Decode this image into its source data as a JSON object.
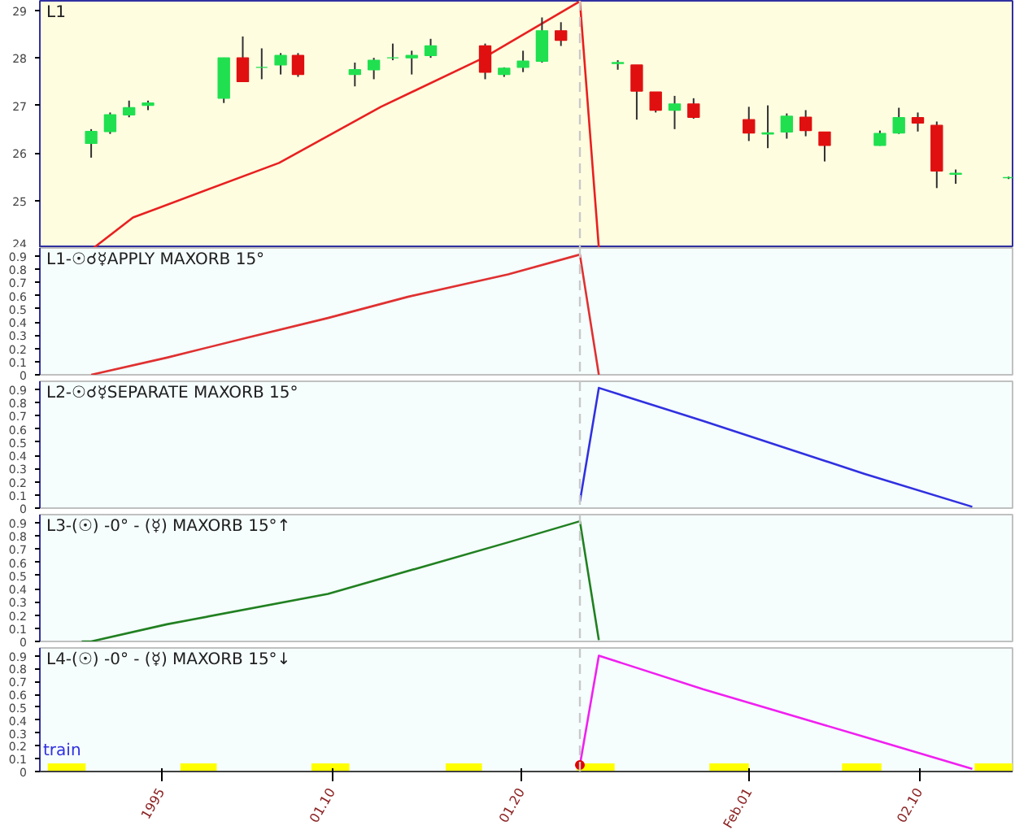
{
  "chart_data": [
    {
      "type": "candlestick",
      "title": "L1",
      "x": [
        "1994-12-28T07:00",
        "1994-12-29T07:00",
        "1994-12-30T07:00",
        "1994-12-31T07:00",
        "1995-01-04T07:00",
        "1995-01-05T07:00",
        "1995-01-06T07:00",
        "1995-01-07T07:00",
        "1995-01-08T05:00",
        "1995-01-11T05:00",
        "1995-01-12T05:00",
        "1995-01-13T05:00",
        "1995-01-14T05:00",
        "1995-01-15T05:00",
        "1995-01-18T02:00",
        "1995-01-19T02:00",
        "1995-01-20T02:00",
        "1995-01-21T02:00",
        "1995-01-22T02:00",
        "1995-01-25T02:00",
        "1995-01-26T02:00",
        "1995-01-27T02:00",
        "1995-01-28T02:00",
        "1995-01-29T02:00",
        "1995-02-01T00:00",
        "1995-02-02T00:00",
        "1995-02-03T00:00",
        "1995-02-04T00:00",
        "1995-02-05T00:00",
        "1995-02-07T22:00",
        "1995-02-08T22:00",
        "1995-02-09T22:00",
        "1995-02-10T22:00",
        "1995-02-11T22:00",
        "1995-02-14T17:00"
      ],
      "ohlc": [
        [
          26.2,
          26.5,
          25.9,
          26.45
        ],
        [
          26.45,
          26.85,
          26.4,
          26.8
        ],
        [
          26.8,
          27.1,
          26.75,
          26.95
        ],
        [
          27.0,
          27.1,
          26.9,
          27.05
        ],
        [
          27.15,
          28.0,
          27.05,
          28.0
        ],
        [
          28.0,
          28.45,
          27.5,
          27.5
        ],
        [
          27.8,
          28.2,
          27.55,
          27.8
        ],
        [
          27.85,
          28.1,
          27.65,
          28.05
        ],
        [
          28.05,
          28.1,
          27.6,
          27.65
        ],
        [
          27.65,
          27.9,
          27.4,
          27.75
        ],
        [
          27.75,
          28.0,
          27.55,
          27.95
        ],
        [
          28.0,
          28.3,
          27.95,
          28.0
        ],
        [
          28.0,
          28.15,
          27.65,
          28.05
        ],
        [
          28.05,
          28.4,
          28.0,
          28.25
        ],
        [
          28.25,
          28.3,
          27.55,
          27.7
        ],
        [
          27.65,
          27.8,
          27.6,
          27.78
        ],
        [
          27.8,
          28.15,
          27.7,
          27.93
        ],
        [
          27.93,
          28.85,
          27.9,
          28.57
        ],
        [
          28.57,
          28.75,
          28.25,
          28.37
        ],
        [
          27.88,
          27.95,
          27.75,
          27.9
        ],
        [
          27.85,
          27.85,
          26.7,
          27.3
        ],
        [
          27.28,
          27.28,
          26.85,
          26.9
        ],
        [
          26.9,
          27.2,
          26.5,
          27.03
        ],
        [
          27.03,
          27.15,
          26.72,
          26.75
        ],
        [
          26.7,
          26.97,
          26.25,
          26.42
        ],
        [
          26.4,
          27.0,
          26.1,
          26.42
        ],
        [
          26.44,
          26.83,
          26.3,
          26.77
        ],
        [
          26.75,
          26.9,
          26.35,
          26.47
        ],
        [
          26.44,
          26.44,
          25.82,
          26.16
        ],
        [
          26.16,
          26.47,
          26.15,
          26.41
        ],
        [
          26.42,
          26.95,
          26.4,
          26.74
        ],
        [
          26.74,
          26.85,
          26.45,
          26.63
        ],
        [
          26.58,
          26.66,
          25.26,
          25.62
        ],
        [
          25.55,
          25.65,
          25.35,
          25.57
        ],
        [
          25.48,
          25.5,
          25.45,
          25.48
        ]
      ],
      "colors": [
        "#20e050",
        "#20e050",
        "#20e050",
        "#20e050",
        "#20e050",
        "#e01010",
        "#20e050",
        "#20e050",
        "#e01010",
        "#20e050",
        "#20e050",
        "#20e050",
        "#20e050",
        "#20e050",
        "#e01010",
        "#20e050",
        "#20e050",
        "#20e050",
        "#e01010",
        "#20e050",
        "#e01010",
        "#e01010",
        "#20e050",
        "#e01010",
        "#e01010",
        "#20e050",
        "#20e050",
        "#e01010",
        "#e01010",
        "#20e050",
        "#20e050",
        "#e01010",
        "#e01010",
        "#20e050",
        "#20e050"
      ],
      "series": [
        {
          "type": "line",
          "x": [
            "1994-12-28T10:00",
            "1994-12-30T12:00",
            "1995-01-07T05:00",
            "1995-01-12T14:00",
            "1995-01-18T00:00",
            "1995-01-23T02:00",
            "1995-01-24T02:00"
          ],
          "values": [
            24.0,
            24.64,
            25.79,
            26.97,
            28.0,
            29.19,
            24.0
          ],
          "color": "#e82020"
        }
      ],
      "xlim": [
        "1994-12-25T14:00",
        "1995-02-14T22:00"
      ],
      "ylim": [
        24,
        29.2
      ],
      "yticks": [
        24,
        25,
        26,
        27,
        28,
        29
      ],
      "tick_labels": "y",
      "ref_lines": [
        {
          "axis": "x",
          "value": "1995-01-23T02:00",
          "color": "#c8c8c8",
          "line_style": "dashed"
        }
      ]
    },
    {
      "type": "line",
      "title": "L1-☉☌☿APPLY MAXORB 15°",
      "series": [
        {
          "x": [
            "1994-12-28T07:00",
            "1995-01-01T07:00",
            "1995-01-05T12:00",
            "1995-01-09T19:00",
            "1995-01-14T00:00",
            "1995-01-19T07:00",
            "1995-01-23T02:00",
            "1995-01-24T02:00"
          ],
          "values": [
            0,
            0.13,
            0.28,
            0.43,
            0.59,
            0.76,
            0.91,
            0
          ],
          "color": "#e03030"
        }
      ],
      "xlim": [
        "1994-12-25T14:00",
        "1995-02-14T22:00"
      ],
      "ylim": [
        0,
        0.96
      ],
      "yticks": [
        0,
        0.1,
        0.2,
        0.3,
        0.4,
        0.5,
        0.6,
        0.7,
        0.8,
        0.9
      ],
      "tick_labels": "y",
      "ref_lines": [
        {
          "axis": "x",
          "value": "1995-01-23T02:00",
          "color": "#c8c8c8",
          "line_style": "dashed"
        }
      ]
    },
    {
      "type": "line",
      "title": "L2-☉☌☿SEPARATE MAXORB 15°",
      "series": [
        {
          "x": [
            "1995-01-23T02:00",
            "1995-01-24T02:00",
            "1995-01-29T14:00",
            "1995-02-07T02:00",
            "1995-02-12T19:00"
          ],
          "values": [
            0.05,
            0.91,
            0.66,
            0.26,
            0.01
          ],
          "color": "#3030e0"
        }
      ],
      "xlim": [
        "1994-12-25T14:00",
        "1995-02-14T22:00"
      ],
      "ylim": [
        0,
        0.96
      ],
      "yticks": [
        0,
        0.1,
        0.2,
        0.3,
        0.4,
        0.5,
        0.6,
        0.7,
        0.8,
        0.9
      ],
      "tick_labels": "y",
      "ref_lines": [
        {
          "axis": "x",
          "value": "1995-01-23T02:00",
          "color": "#c8c8c8",
          "line_style": "dashed"
        }
      ]
    },
    {
      "type": "line",
      "title": "L3-(☉) -0° - (☿) MAXORB 15°↑",
      "series": [
        {
          "x": [
            "1994-12-27T19:00",
            "1994-12-28T07:00",
            "1995-01-01T07:00",
            "1995-01-09T19:00",
            "1995-01-19T07:00",
            "1995-01-23T02:00",
            "1995-01-24T02:00"
          ],
          "values": [
            0,
            0,
            0.13,
            0.36,
            0.75,
            0.91,
            0.01
          ],
          "color": "#208020"
        }
      ],
      "xlim": [
        "1994-12-25T14:00",
        "1995-02-14T22:00"
      ],
      "ylim": [
        0,
        0.96
      ],
      "yticks": [
        0,
        0.1,
        0.2,
        0.3,
        0.4,
        0.5,
        0.6,
        0.7,
        0.8,
        0.9
      ],
      "tick_labels": "y",
      "ref_lines": [
        {
          "axis": "x",
          "value": "1995-01-23T02:00",
          "color": "#c8c8c8",
          "line_style": "dashed"
        }
      ]
    },
    {
      "type": "line",
      "title": "L4-(☉) -0° - (☿) MAXORB 15°↓",
      "series": [
        {
          "x": [
            "1995-01-23T02:00",
            "1995-01-24T02:00",
            "1995-01-29T14:00",
            "1995-02-07T02:00",
            "1995-02-12T19:00"
          ],
          "values": [
            0.05,
            0.9,
            0.64,
            0.27,
            0.02
          ],
          "color": "#f020f0"
        },
        {
          "type": "scatter",
          "x": [
            "1995-01-23T02:00"
          ],
          "values": [
            0.05
          ],
          "color": "#e00000",
          "marker": "circle"
        }
      ],
      "xlim": [
        "1994-12-25T14:00",
        "1995-02-14T22:00"
      ],
      "ylim": [
        0,
        0.96
      ],
      "yticks": [
        0,
        0.1,
        0.2,
        0.3,
        0.4,
        0.5,
        0.6,
        0.7,
        0.8,
        0.9
      ],
      "xticks": [
        {
          "value": "1995-01-01",
          "label": "1995"
        },
        {
          "value": "1995-01-10",
          "label": "01.10"
        },
        {
          "value": "1995-01-20",
          "label": "01.20"
        },
        {
          "value": "1995-02-01",
          "label": "Feb.01"
        },
        {
          "value": "1995-02-10",
          "label": "02.10"
        }
      ],
      "annotations": [
        "train"
      ],
      "ref_lines": [
        {
          "axis": "x",
          "value": "1995-01-23T02:00",
          "color": "#c8c8c8",
          "line_style": "dashed"
        }
      ],
      "bands": [
        {
          "axis": "x",
          "from": "1994-12-26T00:00",
          "to": "1994-12-28T00:00",
          "color": "#ffff00"
        },
        {
          "axis": "x",
          "from": "1995-01-02T00:00",
          "to": "1995-01-03T22:00",
          "color": "#ffff00"
        },
        {
          "axis": "x",
          "from": "1995-01-08T22:00",
          "to": "1995-01-10T22:00",
          "color": "#ffff00"
        },
        {
          "axis": "x",
          "from": "1995-01-16T00:00",
          "to": "1995-01-17T22:00",
          "color": "#ffff00"
        },
        {
          "axis": "x",
          "from": "1995-01-22T22:00",
          "to": "1995-01-24T22:00",
          "color": "#ffff00"
        },
        {
          "axis": "x",
          "from": "1995-01-29T22:00",
          "to": "1995-02-01T00:00",
          "color": "#ffff00"
        },
        {
          "axis": "x",
          "from": "1995-02-05T22:00",
          "to": "1995-02-08T00:00",
          "color": "#ffff00"
        },
        {
          "axis": "x",
          "from": "1995-02-12T22:00",
          "to": "1995-02-14T22:00",
          "color": "#ffff00"
        }
      ]
    }
  ]
}
